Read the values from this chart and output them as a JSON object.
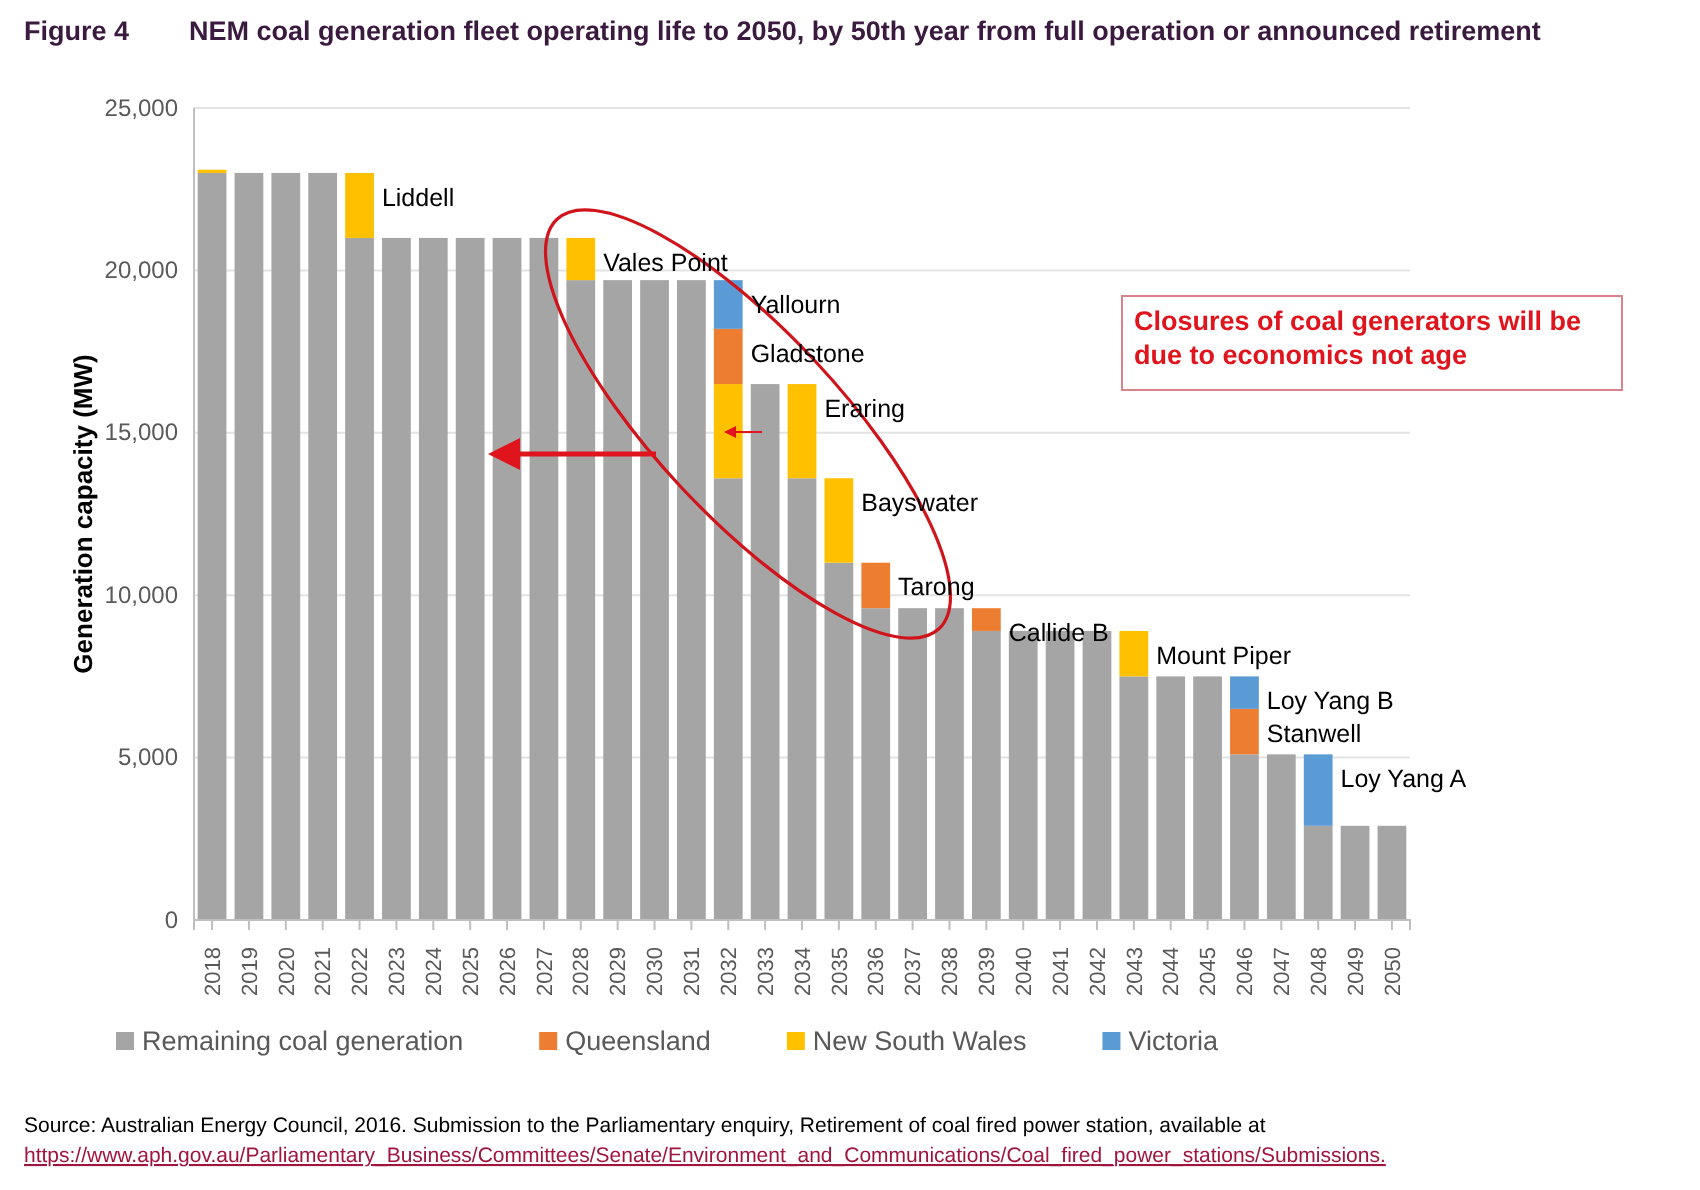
{
  "chart_data": {
    "type": "bar",
    "stacked": true,
    "title": "Figure 4        NEM coal generation fleet operating life to 2050, by 50th year from full operation or announced retirement",
    "ylabel": "Generation capacity (MW)",
    "categories": [
      "2018",
      "2019",
      "2020",
      "2021",
      "2022",
      "2023",
      "2024",
      "2025",
      "2026",
      "2027",
      "2028",
      "2029",
      "2030",
      "2031",
      "2032",
      "2033",
      "2034",
      "2035",
      "2036",
      "2037",
      "2038",
      "2039",
      "2040",
      "2041",
      "2042",
      "2043",
      "2044",
      "2045",
      "2046",
      "2047",
      "2048",
      "2049",
      "2050"
    ],
    "series": [
      {
        "name": "Remaining coal generation",
        "color": "#a5a5a5",
        "values": [
          23000,
          23000,
          23000,
          23000,
          21000,
          21000,
          21000,
          21000,
          21000,
          21000,
          19700,
          19700,
          19700,
          19700,
          13600,
          16500,
          13600,
          11000,
          9600,
          9600,
          9600,
          8900,
          8900,
          8900,
          8900,
          7500,
          7500,
          7500,
          5100,
          5100,
          2900,
          2900,
          2900
        ]
      },
      {
        "name": "New South Wales",
        "color": "#ffc000",
        "values": [
          100,
          null,
          null,
          null,
          2000,
          null,
          null,
          null,
          null,
          null,
          1300,
          null,
          null,
          null,
          2900,
          null,
          2900,
          2600,
          null,
          null,
          null,
          null,
          null,
          null,
          null,
          1400,
          null,
          null,
          null,
          null,
          null,
          null,
          null
        ]
      },
      {
        "name": "Queensland",
        "color": "#ed7d31",
        "values": [
          null,
          null,
          null,
          null,
          null,
          null,
          null,
          null,
          null,
          null,
          null,
          null,
          null,
          null,
          1700,
          null,
          null,
          null,
          1400,
          null,
          null,
          700,
          null,
          null,
          null,
          null,
          null,
          null,
          1400,
          null,
          null,
          null,
          null
        ]
      },
      {
        "name": "Victoria",
        "color": "#5b9bd5",
        "values": [
          null,
          null,
          null,
          null,
          null,
          null,
          null,
          null,
          null,
          null,
          null,
          null,
          null,
          null,
          1500,
          null,
          null,
          null,
          null,
          null,
          null,
          null,
          null,
          null,
          null,
          null,
          null,
          null,
          1000,
          null,
          2200,
          null,
          null
        ]
      }
    ],
    "ylim": [
      0,
      25000
    ],
    "yticks": [
      0,
      {
        "value": 5000,
        "label": "5,000"
      },
      {
        "value": 10000,
        "label": "10,000"
      },
      {
        "value": 15000,
        "label": "15,000"
      },
      {
        "value": 20000,
        "label": "20,000"
      },
      {
        "value": 25000,
        "label": "25,000"
      }
    ],
    "grid": "y",
    "legend": "bottom",
    "annotations": [
      {
        "text": "Liddell",
        "x": "2022",
        "y": 23000
      },
      {
        "text": "Vales Point",
        "x": "2028",
        "y": 21000
      },
      {
        "text": "Yallourn",
        "x": "2032",
        "y": 19700
      },
      {
        "text": "Gladstone",
        "x": "2032",
        "y": 18200
      },
      {
        "text": "Eraring",
        "x": "2034",
        "y": 16500
      },
      {
        "text": "Bayswater",
        "x": "2035",
        "y": 13600
      },
      {
        "text": "Tarong",
        "x": "2036",
        "y": 11000
      },
      {
        "text": "Callide B",
        "x": "2039",
        "y": 9600
      },
      {
        "text": "Mount Piper",
        "x": "2043",
        "y": 8900
      },
      {
        "text": "Loy Yang B",
        "x": "2046",
        "y": 7500
      },
      {
        "text": "Stanwell",
        "x": "2046",
        "y": 6500
      },
      {
        "text": "Loy Yang A",
        "x": "2048",
        "y": 5100
      },
      "Closures of coal generators will be due to economics not age",
      "Source: Australian Energy Council, 2016. Submission to the Parliamentary enquiry, Retirement of coal fired power station, available at",
      "https://www.aph.gov.au/Parliamentary_Business/Committees/Senate/Environment_and_Communications/Coal_fired_power_stations/Submissions."
    ]
  }
}
